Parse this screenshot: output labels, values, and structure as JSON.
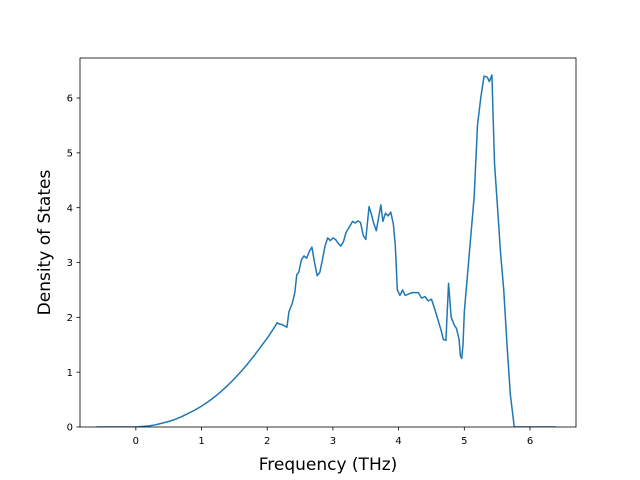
{
  "chart_data": {
    "type": "line",
    "title": "",
    "xlabel": "Frequency (THz)",
    "ylabel": "Density of States",
    "xlim": [
      -0.85,
      6.7
    ],
    "ylim": [
      0,
      6.73
    ],
    "xticks": [
      0,
      1,
      2,
      3,
      4,
      5,
      6
    ],
    "yticks": [
      0,
      1,
      2,
      3,
      4,
      5,
      6
    ],
    "grid": false,
    "series": [
      {
        "name": "",
        "color": "#1f77b4",
        "x": [
          -0.6,
          -0.4,
          -0.2,
          0.0,
          0.1,
          0.2,
          0.3,
          0.4,
          0.5,
          0.6,
          0.7,
          0.8,
          0.9,
          1.0,
          1.1,
          1.2,
          1.3,
          1.4,
          1.5,
          1.6,
          1.7,
          1.8,
          1.9,
          2.0,
          2.1,
          2.15,
          2.18,
          2.22,
          2.3,
          2.33,
          2.38,
          2.42,
          2.45,
          2.48,
          2.52,
          2.56,
          2.6,
          2.64,
          2.68,
          2.72,
          2.76,
          2.8,
          2.84,
          2.88,
          2.92,
          2.96,
          3.0,
          3.04,
          3.08,
          3.12,
          3.16,
          3.2,
          3.25,
          3.3,
          3.34,
          3.38,
          3.42,
          3.46,
          3.5,
          3.55,
          3.58,
          3.62,
          3.66,
          3.7,
          3.73,
          3.76,
          3.8,
          3.84,
          3.88,
          3.92,
          3.95,
          3.98,
          4.02,
          4.06,
          4.1,
          4.2,
          4.3,
          4.35,
          4.4,
          4.45,
          4.5,
          4.55,
          4.6,
          4.65,
          4.68,
          4.72,
          4.76,
          4.8,
          4.85,
          4.88,
          4.92,
          4.94,
          4.96,
          4.98,
          5.0,
          5.05,
          5.1,
          5.15,
          5.2,
          5.25,
          5.3,
          5.35,
          5.38,
          5.42,
          5.44,
          5.46,
          5.5,
          5.55,
          5.6,
          5.65,
          5.7,
          5.73,
          5.76,
          5.8,
          6.0,
          6.2,
          6.4
        ],
        "y": [
          0,
          0,
          0,
          0,
          0.01,
          0.02,
          0.04,
          0.07,
          0.1,
          0.14,
          0.19,
          0.25,
          0.31,
          0.38,
          0.46,
          0.55,
          0.65,
          0.76,
          0.88,
          1.01,
          1.15,
          1.3,
          1.46,
          1.62,
          1.8,
          1.9,
          1.88,
          1.87,
          1.82,
          2.1,
          2.25,
          2.45,
          2.78,
          2.82,
          3.05,
          3.12,
          3.08,
          3.2,
          3.28,
          3.0,
          2.76,
          2.82,
          3.05,
          3.3,
          3.45,
          3.4,
          3.45,
          3.42,
          3.35,
          3.3,
          3.38,
          3.55,
          3.65,
          3.75,
          3.72,
          3.76,
          3.73,
          3.5,
          3.42,
          4.02,
          3.9,
          3.72,
          3.58,
          3.85,
          4.05,
          3.75,
          3.9,
          3.85,
          3.92,
          3.7,
          3.3,
          2.5,
          2.4,
          2.5,
          2.4,
          2.45,
          2.45,
          2.35,
          2.38,
          2.3,
          2.33,
          2.15,
          1.95,
          1.75,
          1.6,
          1.58,
          2.62,
          2.0,
          1.85,
          1.8,
          1.6,
          1.3,
          1.25,
          1.5,
          2.1,
          2.8,
          3.5,
          4.2,
          5.5,
          6.0,
          6.4,
          6.38,
          6.3,
          6.42,
          5.6,
          4.8,
          4.1,
          3.2,
          2.5,
          1.5,
          0.6,
          0.3,
          0,
          0,
          0,
          0,
          0
        ]
      }
    ]
  }
}
